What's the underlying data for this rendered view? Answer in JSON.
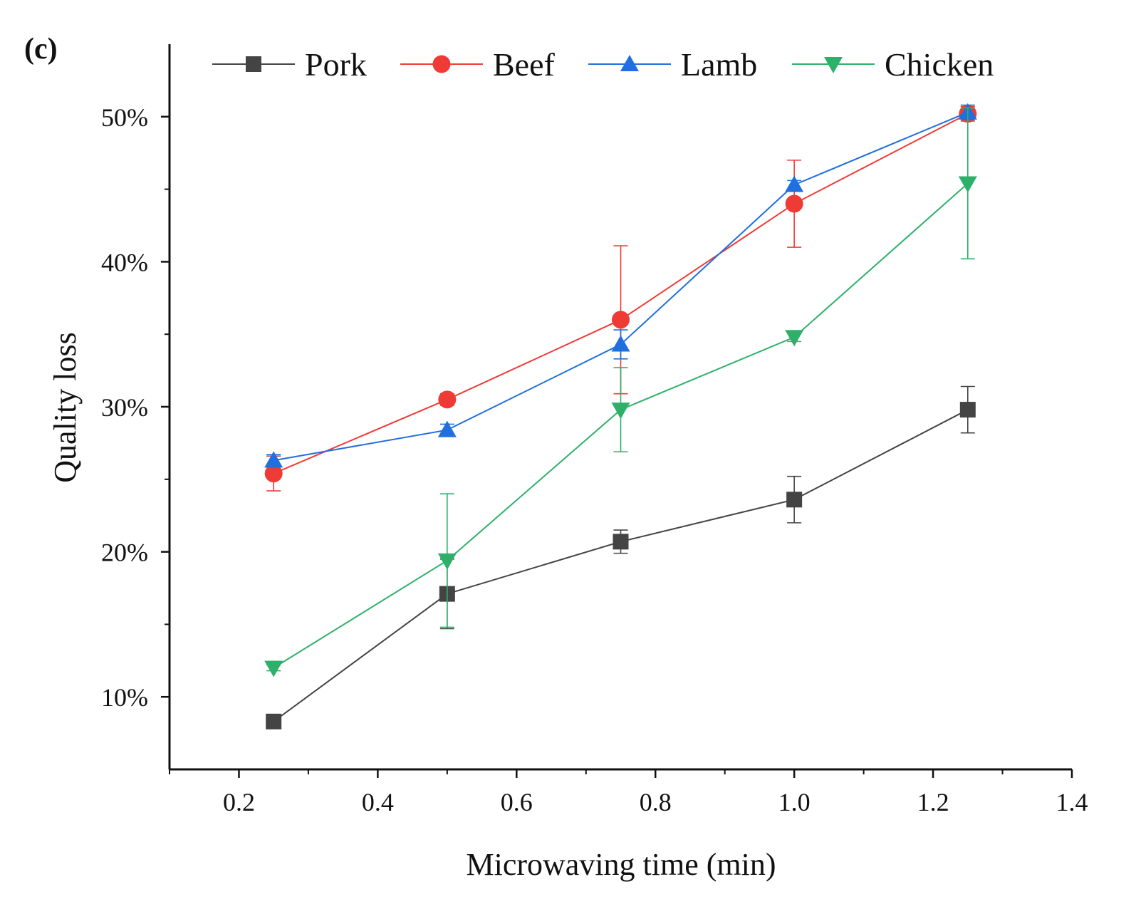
{
  "chart_data": {
    "type": "line",
    "panel_label": "(c)",
    "xlabel": "Microwaving time (min)",
    "ylabel": "Quality loss",
    "xlim": [
      0.1,
      1.4
    ],
    "ylim": [
      5,
      55
    ],
    "xticks": [
      0.2,
      0.4,
      0.6,
      0.8,
      1.0,
      1.2,
      1.4
    ],
    "xtick_labels": [
      "0.2",
      "0.4",
      "0.6",
      "0.8",
      "1.0",
      "1.2",
      "1.4"
    ],
    "yticks": [
      10,
      20,
      30,
      40,
      50
    ],
    "ytick_labels": [
      "10%",
      "20%",
      "30%",
      "40%",
      "50%"
    ],
    "legend_position": "top",
    "x": [
      0.25,
      0.5,
      0.75,
      1.0,
      1.25
    ],
    "series": [
      {
        "name": "Pork",
        "color": "#444444",
        "marker": "square",
        "values": [
          8.3,
          17.1,
          20.7,
          23.6,
          29.8
        ],
        "errors": [
          0.3,
          2.4,
          0.8,
          1.6,
          1.6
        ]
      },
      {
        "name": "Beef",
        "color": "#ef3b36",
        "marker": "circle",
        "values": [
          25.4,
          30.5,
          36.0,
          44.0,
          50.2
        ],
        "errors": [
          1.2,
          0.4,
          5.1,
          3.0,
          0.5
        ]
      },
      {
        "name": "Lamb",
        "color": "#1f6fde",
        "marker": "triangle-up",
        "values": [
          26.3,
          28.4,
          34.3,
          45.3,
          50.3
        ],
        "errors": [
          0.4,
          0.4,
          1.0,
          0.3,
          0.5
        ]
      },
      {
        "name": "Chicken",
        "color": "#2fb06a",
        "marker": "triangle-down",
        "values": [
          12.0,
          19.4,
          29.8,
          34.8,
          45.4
        ],
        "errors": [
          0.2,
          4.6,
          2.9,
          0.3,
          5.2
        ]
      }
    ]
  }
}
